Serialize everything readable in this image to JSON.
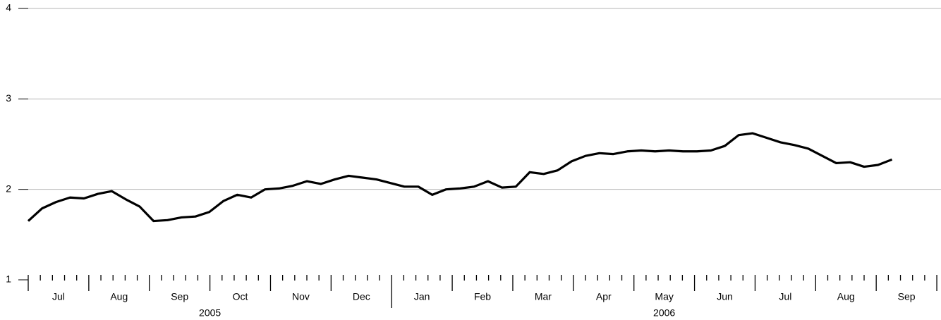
{
  "chart_data": {
    "type": "line",
    "categories": [
      null,
      null,
      null,
      null,
      null,
      null,
      null,
      null,
      null,
      null,
      null,
      null,
      null,
      null,
      null,
      null,
      null,
      null,
      null,
      null,
      null,
      null,
      null,
      null,
      null,
      null,
      null,
      null,
      null,
      null,
      null,
      null,
      null,
      null,
      null,
      null,
      null,
      null,
      null,
      null,
      null,
      null,
      null,
      null,
      null,
      null,
      null,
      null,
      null,
      null,
      null,
      null,
      null,
      null,
      null,
      null,
      null,
      null,
      null,
      null,
      null,
      null,
      null
    ],
    "values": [
      1.65,
      1.79,
      1.86,
      1.91,
      1.9,
      1.95,
      1.98,
      1.89,
      1.81,
      1.65,
      1.66,
      1.69,
      1.7,
      1.75,
      1.87,
      1.94,
      1.91,
      2.0,
      2.01,
      2.04,
      2.09,
      2.06,
      2.11,
      2.15,
      2.13,
      2.11,
      2.07,
      2.03,
      2.03,
      1.94,
      2.0,
      2.01,
      2.03,
      2.09,
      2.02,
      2.03,
      2.19,
      2.17,
      2.21,
      2.31,
      2.37,
      2.4,
      2.39,
      2.42,
      2.43,
      2.42,
      2.43,
      2.42,
      2.42,
      2.43,
      2.48,
      2.6,
      2.62,
      2.57,
      2.52,
      2.49,
      2.45,
      2.37,
      2.29,
      2.3,
      2.25,
      2.27,
      2.33
    ],
    "color": "#000000",
    "month_labels": [
      "Jul",
      "Aug",
      "Sep",
      "Oct",
      "Nov",
      "Dec",
      "Jan",
      "Feb",
      "Mar",
      "Apr",
      "May",
      "Jun",
      "Jul",
      "Aug",
      "Sep"
    ],
    "year_labels": [
      "2005",
      "2006"
    ],
    "ylim": [
      1,
      4
    ],
    "yticks": [
      1,
      2,
      3,
      4
    ],
    "grid": true
  }
}
